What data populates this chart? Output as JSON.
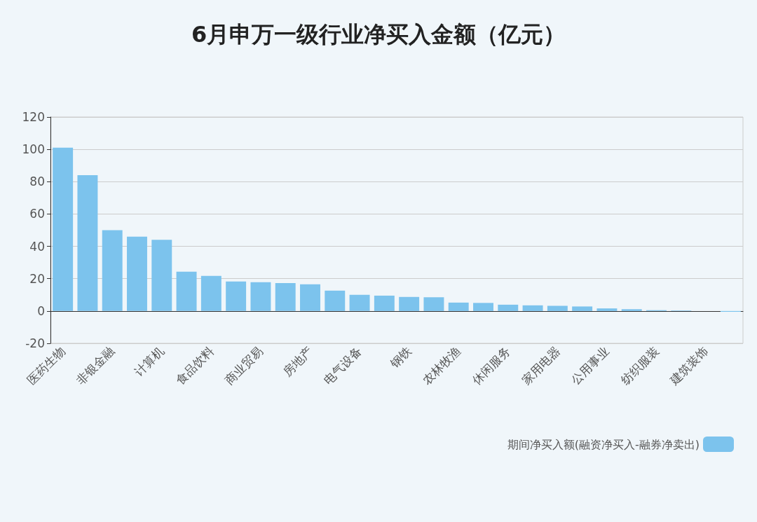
{
  "chart_data": {
    "type": "bar",
    "title": "6月申万一级行业净买入金额（亿元）",
    "categories": [
      "医药生物",
      null,
      "非银金融",
      null,
      "计算机",
      null,
      "食品饮料",
      null,
      "商业贸易",
      null,
      "房地产",
      null,
      "电气设备",
      null,
      "钢铁",
      null,
      "农林牧渔",
      null,
      "休闲服务",
      null,
      "家用电器",
      null,
      "公用事业",
      null,
      "纺织服装",
      null,
      "建筑装饰",
      null
    ],
    "series": [
      {
        "name": "期间净买入额(融资净买入-融券净卖出)",
        "color": "#7cc3ed",
        "values": [
          101,
          84,
          50,
          46,
          44,
          24.3,
          21.7,
          18.2,
          17.8,
          17.3,
          16.5,
          12.6,
          10,
          9.5,
          8.7,
          8.5,
          5.2,
          5,
          3.9,
          3.5,
          3.2,
          2.8,
          1.6,
          1.1,
          0.5,
          0.3,
          null,
          -0.5
        ]
      }
    ],
    "ylim": [
      -20,
      120
    ],
    "yticks": [
      -20,
      0,
      20,
      40,
      60,
      80,
      100,
      120
    ],
    "grid": "y",
    "legend": "bottom right"
  }
}
